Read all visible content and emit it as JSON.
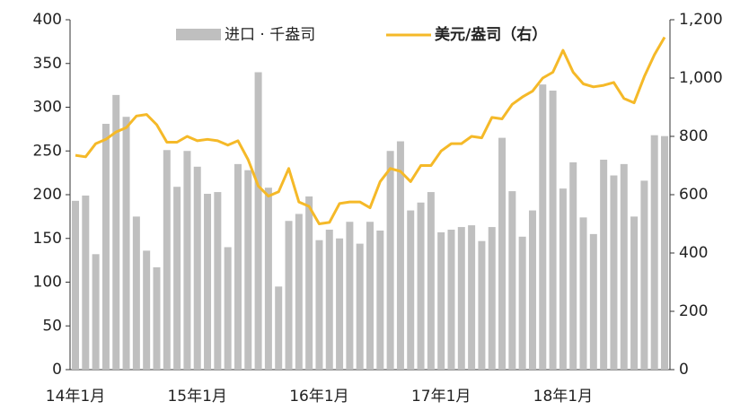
{
  "chart_data": {
    "type": "bar_line",
    "categories": [
      "14年1月",
      null,
      null,
      null,
      null,
      null,
      null,
      null,
      null,
      null,
      null,
      null,
      "15年1月",
      null,
      null,
      null,
      null,
      null,
      null,
      null,
      null,
      null,
      null,
      null,
      "16年1月",
      null,
      null,
      null,
      null,
      null,
      null,
      null,
      null,
      null,
      null,
      null,
      "17年1月",
      null,
      null,
      null,
      null,
      null,
      null,
      null,
      null,
      null,
      null,
      null,
      "18年1月",
      null,
      null,
      null,
      null,
      null,
      null,
      null,
      null,
      null,
      null
    ],
    "series": [
      {
        "name": "进口 · 千盎司",
        "type": "bar",
        "color": "#bfbfbf",
        "values": [
          193,
          199,
          132,
          281,
          314,
          289,
          175,
          136,
          117,
          251,
          209,
          250,
          232,
          201,
          203,
          140,
          235,
          228,
          340,
          208,
          95,
          170,
          178,
          198,
          148,
          160,
          150,
          169,
          144,
          169,
          159,
          250,
          261,
          182,
          191,
          203,
          157,
          160,
          163,
          165,
          147,
          163,
          265,
          204,
          152,
          182,
          326,
          319,
          207,
          237,
          174,
          155,
          240,
          222,
          235,
          175,
          216,
          268,
          267
        ]
      },
      {
        "name": "美元/盎司（右）",
        "type": "line",
        "axis": "y2",
        "color": "#f5b928",
        "values": [
          735,
          730,
          775,
          790,
          815,
          830,
          870,
          875,
          840,
          780,
          780,
          800,
          785,
          790,
          785,
          770,
          785,
          720,
          630,
          595,
          610,
          690,
          575,
          560,
          500,
          505,
          570,
          575,
          575,
          555,
          645,
          690,
          680,
          645,
          700,
          700,
          750,
          775,
          775,
          800,
          795,
          865,
          860,
          910,
          935,
          955,
          1000,
          1020,
          1095,
          1020,
          980,
          970,
          975,
          985,
          930,
          915,
          1005,
          1080,
          1140
        ]
      }
    ],
    "ylim": [
      0,
      400
    ],
    "yticks": [
      0,
      50,
      100,
      150,
      200,
      250,
      300,
      350,
      400
    ],
    "y2lim": [
      0,
      1200
    ],
    "y2ticks": [
      0,
      200,
      400,
      600,
      800,
      {
        "value": 1000,
        "label": "1,000"
      },
      {
        "value": 1200,
        "label": "1,200"
      }
    ]
  }
}
